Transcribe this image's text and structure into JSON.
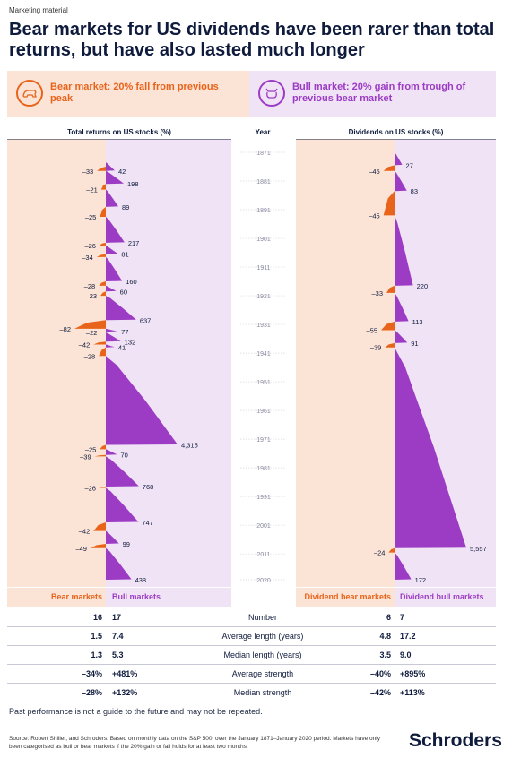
{
  "top_note": "Marketing material",
  "title": "Bear markets for US dividends have been rarer than total returns, but have also lasted much longer",
  "legend": {
    "bear": "Bear market: 20% fall from previous peak",
    "bull": "Bull market: 20% gain from trough of previous bear market",
    "bear_icon": "bear-icon",
    "bull_icon": "bull-icon"
  },
  "colors": {
    "bear": "#e8641b",
    "bull": "#9c3cc4",
    "bear_bg": "#fbe3d6",
    "bull_bg": "#efe3f5",
    "navy": "#0f1b3d"
  },
  "chart_data": [
    {
      "type": "area",
      "title": "Total returns on US stocks (%)",
      "axis": "Year",
      "year_range": [
        1871,
        2020
      ],
      "year_ticks": [
        1871,
        1881,
        1891,
        1901,
        1911,
        1921,
        1931,
        1941,
        1951,
        1961,
        1971,
        1981,
        1991,
        2001,
        2011,
        2020
      ],
      "bull": [
        {
          "start": 1874.5,
          "end": 1877.5,
          "value": 42
        },
        {
          "start": 1877.5,
          "end": 1882,
          "value": 198
        },
        {
          "start": 1884,
          "end": 1890,
          "value": 89
        },
        {
          "start": 1893.5,
          "end": 1902.5,
          "value": 217
        },
        {
          "start": 1903.5,
          "end": 1906.5,
          "value": 81
        },
        {
          "start": 1907.5,
          "end": 1916,
          "value": 160
        },
        {
          "start": 1917.5,
          "end": 1919.5,
          "value": 60
        },
        {
          "start": 1921,
          "end": 1929.5,
          "value": 637
        },
        {
          "start": 1932.5,
          "end": 1933.5,
          "value": 77
        },
        {
          "start": 1933.8,
          "end": 1937,
          "value": 132
        },
        {
          "start": 1938,
          "end": 1939,
          "value": 41
        },
        {
          "start": 1942,
          "end": 1973,
          "value": 4315
        },
        {
          "start": 1974.5,
          "end": 1976.5,
          "value": 70
        },
        {
          "start": 1977,
          "end": 1987.5,
          "value": 768
        },
        {
          "start": 1988,
          "end": 2000,
          "value": 747
        },
        {
          "start": 2003,
          "end": 2007.5,
          "value": 99
        },
        {
          "start": 2009,
          "end": 2020,
          "value": 438
        }
      ],
      "bear": [
        {
          "start": 1876,
          "end": 1877.5,
          "value": -33
        },
        {
          "start": 1882,
          "end": 1884,
          "value": -21
        },
        {
          "start": 1890,
          "end": 1893.5,
          "value": -25
        },
        {
          "start": 1902.5,
          "end": 1903.5,
          "value": -26
        },
        {
          "start": 1906.5,
          "end": 1907.5,
          "value": -34
        },
        {
          "start": 1916,
          "end": 1917.5,
          "value": -28
        },
        {
          "start": 1919.5,
          "end": 1921,
          "value": -23
        },
        {
          "start": 1929.5,
          "end": 1932.5,
          "value": -82
        },
        {
          "start": 1933.5,
          "end": 1933.8,
          "value": -22
        },
        {
          "start": 1937,
          "end": 1938,
          "value": -42
        },
        {
          "start": 1939,
          "end": 1942,
          "value": -28
        },
        {
          "start": 1973,
          "end": 1974.5,
          "value": -25
        },
        {
          "start": 1976.5,
          "end": 1977,
          "value": -39
        },
        {
          "start": 1987.5,
          "end": 1988,
          "value": -26
        },
        {
          "start": 2000,
          "end": 2003,
          "value": -42
        },
        {
          "start": 2007.5,
          "end": 2009,
          "value": -49
        }
      ],
      "bull_labels": [
        "42",
        "198",
        "89",
        "217",
        "81",
        "160",
        "60",
        "637",
        "77",
        "132",
        "41",
        "4,315",
        "70",
        "768",
        "747",
        "99",
        "438"
      ],
      "bear_labels": [
        "–33",
        "–21",
        "–25",
        "–26",
        "–34",
        "–28",
        "–23",
        "–82",
        "–22",
        "–42",
        "–28",
        "–25",
        "–39",
        "–26",
        "–42",
        "–49"
      ]
    },
    {
      "type": "area",
      "title": "Dividends on US stocks (%)",
      "bull": [
        {
          "start": 1871,
          "end": 1875.5,
          "value": 27
        },
        {
          "start": 1877.5,
          "end": 1884.5,
          "value": 83
        },
        {
          "start": 1893,
          "end": 1917.5,
          "value": 220
        },
        {
          "start": 1920,
          "end": 1930,
          "value": 113
        },
        {
          "start": 1933,
          "end": 1937.5,
          "value": 91
        },
        {
          "start": 1939,
          "end": 2009,
          "value": 5557
        },
        {
          "start": 2010.5,
          "end": 2020,
          "value": 172
        }
      ],
      "bear": [
        {
          "start": 1875.5,
          "end": 1877.5,
          "value": -45
        },
        {
          "start": 1884.5,
          "end": 1893,
          "value": -45
        },
        {
          "start": 1917.5,
          "end": 1920,
          "value": -33
        },
        {
          "start": 1930,
          "end": 1933,
          "value": -55
        },
        {
          "start": 1937.5,
          "end": 1939,
          "value": -39
        },
        {
          "start": 2009,
          "end": 2010.5,
          "value": -24
        }
      ],
      "bull_labels": [
        "27",
        "83",
        "220",
        "113",
        "91",
        "5,557",
        "172"
      ],
      "bear_labels": [
        "–45",
        "–45",
        "–33",
        "–55",
        "–39",
        "–24"
      ]
    }
  ],
  "table": {
    "left_headers": [
      "Bear markets",
      "Bull markets"
    ],
    "right_headers": [
      "Dividend bear markets",
      "Dividend bull markets"
    ],
    "rows": [
      {
        "label": "Number",
        "tr_bear": "16",
        "tr_bull": "17",
        "dv_bear": "6",
        "dv_bull": "7"
      },
      {
        "label": "Average length (years)",
        "tr_bear": "1.5",
        "tr_bull": "7.4",
        "dv_bear": "4.8",
        "dv_bull": "17.2"
      },
      {
        "label": "Median length (years)",
        "tr_bear": "1.3",
        "tr_bull": "5.3",
        "dv_bear": "3.5",
        "dv_bull": "9.0"
      },
      {
        "label": "Average strength",
        "tr_bear": "–34%",
        "tr_bull": "+481%",
        "dv_bear": "–40%",
        "dv_bull": "+895%"
      },
      {
        "label": "Median strength",
        "tr_bear": "–28%",
        "tr_bull": "+132%",
        "dv_bear": "–42%",
        "dv_bull": "+113%"
      }
    ]
  },
  "past_performance": "Past performance is not a guide to the future and may not be repeated.",
  "source": "Source: Robert Shiller, and Schroders. Based on monthly data on the S&P 500, over the January 1871–January 2020 period. Markets have only been categorised as bull or bear markets if the 20% gain or fall holds for at least two months.",
  "brand": "Schroders"
}
